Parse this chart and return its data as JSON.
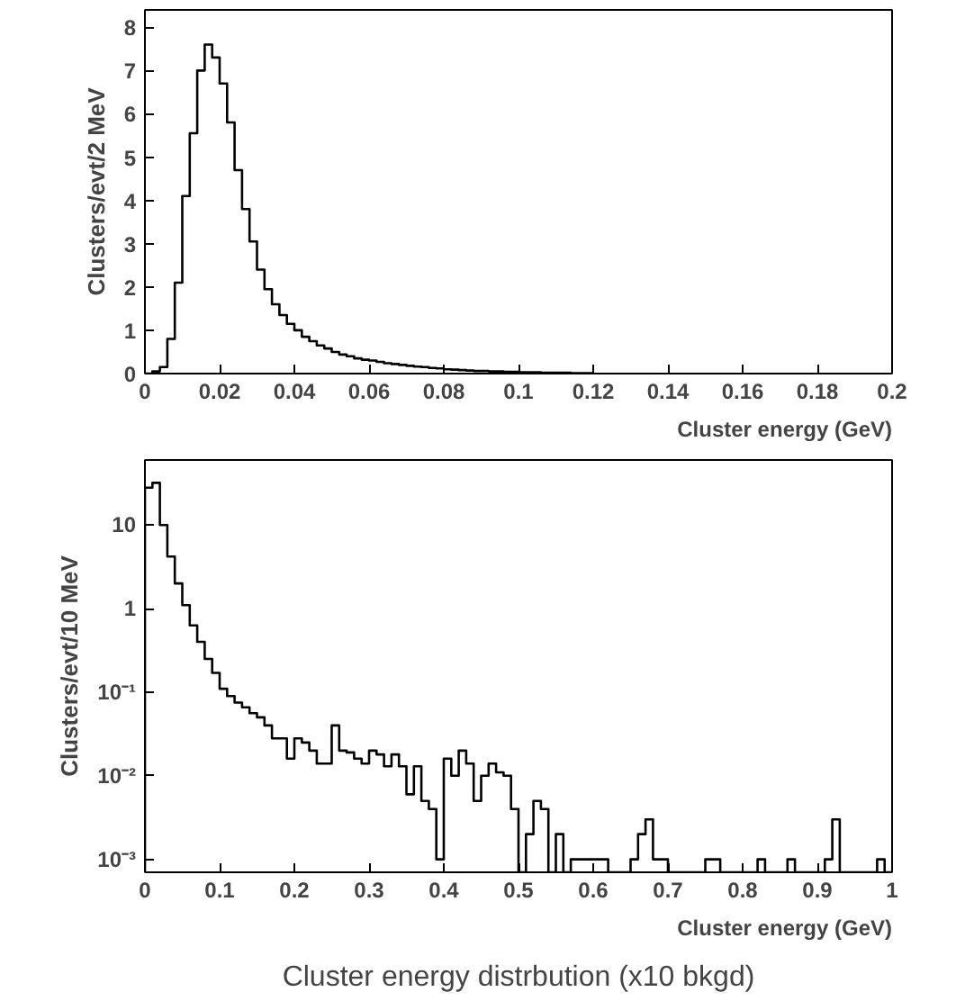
{
  "chart_data": [
    {
      "type": "histogram",
      "ylabel": "Clusters/evt/2 MeV",
      "xlabel": "Cluster energy (GeV)",
      "color": "#000000",
      "bins": [
        0,
        0.002,
        0.004,
        0.006,
        0.008,
        0.01,
        0.012,
        0.014,
        0.016,
        0.018,
        0.02,
        0.022,
        0.024,
        0.026,
        0.028,
        0.03,
        0.032,
        0.034,
        0.036,
        0.038,
        0.04,
        0.042,
        0.044,
        0.046,
        0.048,
        0.05,
        0.052,
        0.054,
        0.056,
        0.058,
        0.06,
        0.062,
        0.064,
        0.066,
        0.068,
        0.07,
        0.072,
        0.074,
        0.076,
        0.078,
        0.08,
        0.082,
        0.084,
        0.086,
        0.088,
        0.09,
        0.092,
        0.094,
        0.096,
        0.098,
        0.1,
        0.102,
        0.104,
        0.106,
        0.108,
        0.11,
        0.112,
        0.114,
        0.116,
        0.118,
        0.12
      ],
      "values": [
        0,
        0.05,
        0.15,
        0.8,
        2.1,
        4.1,
        5.55,
        7.0,
        7.6,
        7.3,
        6.7,
        5.8,
        4.7,
        3.8,
        3.05,
        2.4,
        1.95,
        1.6,
        1.35,
        1.15,
        1.0,
        0.85,
        0.75,
        0.65,
        0.58,
        0.5,
        0.44,
        0.4,
        0.35,
        0.32,
        0.3,
        0.27,
        0.24,
        0.22,
        0.2,
        0.18,
        0.16,
        0.15,
        0.13,
        0.12,
        0.1,
        0.09,
        0.08,
        0.07,
        0.06,
        0.06,
        0.05,
        0.05,
        0.04,
        0.04,
        0.03,
        0.03,
        0.03,
        0.02,
        0.02,
        0.02,
        0.02,
        0.01,
        0.01,
        0.01
      ],
      "xlim": [
        0,
        0.2
      ],
      "ylim": [
        0,
        8.4
      ],
      "xticks": [
        0,
        0.02,
        0.04,
        0.06,
        0.08,
        0.1,
        0.12,
        0.14,
        0.16,
        0.18,
        0.2
      ],
      "yticks": [
        0,
        1,
        2,
        3,
        4,
        5,
        6,
        7,
        8
      ],
      "grid": false
    },
    {
      "type": "histogram",
      "ylabel": "Clusters/evt/10 MeV",
      "xlabel": "Cluster energy (GeV)",
      "color": "#000000",
      "log": "y",
      "bins": [
        0,
        0.01,
        0.02,
        0.03,
        0.04,
        0.05,
        0.06,
        0.07,
        0.08,
        0.09,
        0.1,
        0.11,
        0.12,
        0.13,
        0.14,
        0.15,
        0.16,
        0.17,
        0.18,
        0.19,
        0.2,
        0.21,
        0.22,
        0.23,
        0.24,
        0.25,
        0.26,
        0.27,
        0.28,
        0.29,
        0.3,
        0.31,
        0.32,
        0.33,
        0.34,
        0.35,
        0.36,
        0.37,
        0.38,
        0.39,
        0.4,
        0.41,
        0.42,
        0.43,
        0.44,
        0.45,
        0.46,
        0.47,
        0.48,
        0.49,
        0.5,
        0.51,
        0.52,
        0.53,
        0.54,
        0.55,
        0.56,
        0.57,
        0.58,
        0.59,
        0.6,
        0.61,
        0.62,
        0.63,
        0.64,
        0.65,
        0.66,
        0.67,
        0.68,
        0.69,
        0.7,
        0.71,
        0.72,
        0.73,
        0.74,
        0.75,
        0.76,
        0.77,
        0.78,
        0.79,
        0.8,
        0.81,
        0.82,
        0.83,
        0.84,
        0.85,
        0.86,
        0.87,
        0.88,
        0.89,
        0.9,
        0.91,
        0.92,
        0.93,
        0.94,
        0.95,
        0.96,
        0.97,
        0.98,
        0.99,
        1.0
      ],
      "values": [
        28,
        32,
        10,
        4.2,
        2,
        1.1,
        0.63,
        0.4,
        0.25,
        0.17,
        0.11,
        0.09,
        0.075,
        0.066,
        0.056,
        0.05,
        0.04,
        0.028,
        0.028,
        0.016,
        0.028,
        0.025,
        0.02,
        0.014,
        0.014,
        0.04,
        0.02,
        0.019,
        0.016,
        0.014,
        0.02,
        0.018,
        0.013,
        0.018,
        0.013,
        0.006,
        0.013,
        0.005,
        0.004,
        0.001,
        0.016,
        0.01,
        0.02,
        0.014,
        0.005,
        0.01,
        0.014,
        0.011,
        0.01,
        0.004,
        null,
        0.002,
        0.005,
        0.004,
        null,
        0.002,
        null,
        0.001,
        0.001,
        0.001,
        0.001,
        0.001,
        null,
        null,
        null,
        0.001,
        0.002,
        0.003,
        0.001,
        0.001,
        null,
        null,
        null,
        null,
        null,
        0.001,
        0.001,
        null,
        null,
        null,
        null,
        null,
        0.001,
        null,
        null,
        null,
        0.001,
        null,
        null,
        null,
        null,
        0.001,
        0.003,
        null,
        null,
        null,
        null,
        null,
        0.001,
        null
      ],
      "xlim": [
        0,
        1
      ],
      "ylim": [
        0.0007,
        60
      ],
      "xticks": [
        0,
        0.1,
        0.2,
        0.3,
        0.4,
        0.5,
        0.6,
        0.7,
        0.8,
        0.9,
        1
      ],
      "yticks": [
        {
          "value": 0.001,
          "label": "10⁻³"
        },
        {
          "value": 0.01,
          "label": "10⁻²"
        },
        {
          "value": 0.1,
          "label": "10⁻¹"
        },
        1,
        10
      ],
      "grid": false,
      "annotations": [
        "Cluster energy distrbution (x10 bkgd)"
      ]
    }
  ]
}
